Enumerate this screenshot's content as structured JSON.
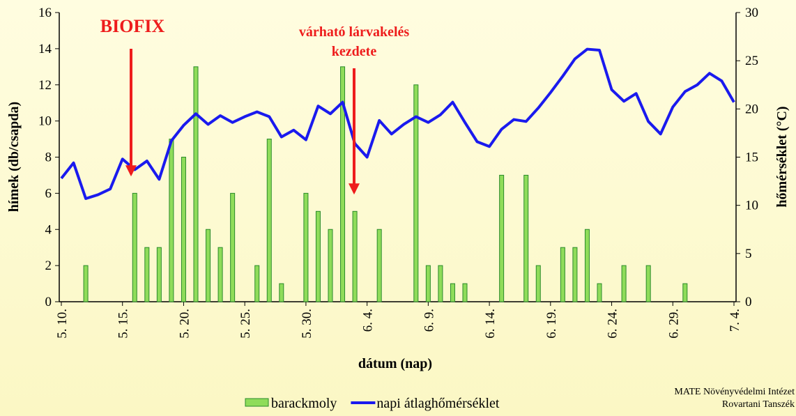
{
  "chart_data": {
    "type": "bar",
    "title": null,
    "annotations": [
      "BIOFIX",
      "várható lárvakelés",
      "kezdete"
    ],
    "credit": [
      "MATE Növényvédelmi Intézet",
      "Rovartani Tanszék"
    ],
    "xlabel": "dátum (nap)",
    "ylabel": "hímek (db/csapda)",
    "y2label": "hőmérséklet (°C)",
    "categories": [
      "5. 10.",
      null,
      null,
      null,
      null,
      "5. 15.",
      null,
      null,
      null,
      null,
      "5. 20.",
      null,
      null,
      null,
      null,
      "5. 25.",
      null,
      null,
      null,
      null,
      "5. 30.",
      null,
      null,
      null,
      null,
      "6. 4.",
      null,
      null,
      null,
      null,
      "6. 9.",
      null,
      null,
      null,
      null,
      "6. 14.",
      null,
      null,
      null,
      null,
      "6. 19.",
      null,
      null,
      null,
      null,
      "6. 24.",
      null,
      null,
      null,
      null,
      "6. 29.",
      null,
      null,
      null,
      null,
      "7. 4."
    ],
    "series": [
      {
        "name": "barackmoly",
        "type": "bar",
        "color": "#8fdc5a",
        "values": [
          0,
          0,
          2,
          0,
          0,
          0,
          6,
          3,
          3,
          9,
          8,
          13,
          4,
          3,
          6,
          0,
          2,
          9,
          1,
          0,
          6,
          5,
          4,
          13,
          5,
          0,
          4,
          0,
          0,
          12,
          2,
          2,
          1,
          1,
          0,
          0,
          7,
          0,
          7,
          2,
          0,
          3,
          3,
          4,
          1,
          0,
          2,
          0,
          2,
          0,
          0,
          1,
          0,
          0,
          0,
          0
        ]
      },
      {
        "name": "napi átlaghőmérséklet",
        "type": "line",
        "axis": "y2",
        "color": "#1a1aee",
        "values": [
          12.8,
          14.4,
          10.7,
          11.1,
          11.7,
          14.8,
          13.7,
          14.6,
          12.7,
          16.7,
          18.3,
          19.5,
          18.4,
          19.3,
          18.6,
          19.2,
          19.7,
          19.2,
          17.1,
          17.8,
          16.8,
          20.3,
          19.5,
          20.7,
          16.4,
          15.0,
          18.8,
          17.4,
          18.4,
          19.2,
          18.6,
          19.4,
          20.7,
          18.6,
          16.6,
          16.1,
          17.9,
          18.9,
          18.7,
          20.1,
          21.7,
          23.4,
          25.2,
          26.2,
          26.1,
          22.0,
          20.8,
          21.6,
          18.7,
          17.4,
          20.2,
          21.8,
          22.5,
          23.7,
          22.9,
          20.7
        ]
      }
    ],
    "ylim": [
      0,
      16
    ],
    "yticks": [
      0,
      2,
      4,
      6,
      8,
      10,
      12,
      14,
      16
    ],
    "y2lim": [
      0,
      30
    ],
    "y2ticks": [
      0,
      5,
      10,
      15,
      20,
      25,
      30
    ],
    "grid": false,
    "legend": "bottom"
  }
}
